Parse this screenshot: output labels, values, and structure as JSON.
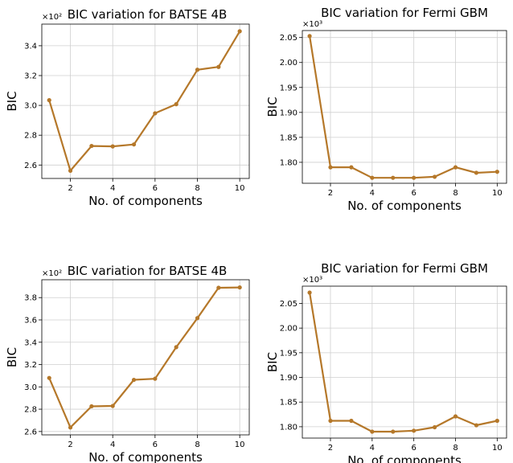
{
  "colors": {
    "series": "#b5782a",
    "grid": "#cfcfcf"
  },
  "chart_data": [
    {
      "type": "line",
      "title": "BIC variation for BATSE 4B",
      "xlabel": "No. of components",
      "ylabel": "BIC",
      "multiplier": "×10²",
      "x": [
        1,
        2,
        3,
        4,
        5,
        6,
        7,
        8,
        9,
        10
      ],
      "y": [
        3.035,
        2.562,
        2.728,
        2.725,
        2.738,
        2.947,
        3.008,
        3.239,
        3.258,
        3.497
      ],
      "xlim": [
        0.65,
        10.45
      ],
      "ylim": [
        2.51,
        3.545
      ],
      "xticks": [
        "2",
        "4",
        "6",
        "8",
        "10"
      ],
      "yticks": [
        "2.6",
        "2.8",
        "3.0",
        "3.2",
        "3.4"
      ],
      "grid": true
    },
    {
      "type": "line",
      "title": "BIC variation for Fermi GBM",
      "xlabel": "No. of components",
      "ylabel": "BIC",
      "multiplier": "×10³",
      "x": [
        1,
        2,
        3,
        4,
        5,
        6,
        7,
        8,
        9,
        10
      ],
      "y": [
        2.053,
        1.79,
        1.79,
        1.769,
        1.769,
        1.769,
        1.771,
        1.79,
        1.779,
        1.781
      ],
      "xlim": [
        0.65,
        10.45
      ],
      "ylim": [
        1.758,
        2.064
      ],
      "xticks": [
        "2",
        "4",
        "6",
        "8",
        "10"
      ],
      "yticks": [
        "1.75",
        "1.80",
        "1.85",
        "1.90",
        "1.95",
        "2.00",
        "2.05"
      ],
      "grid": true
    },
    {
      "type": "line",
      "title": "BIC variation for BATSE 4B",
      "xlabel": "No. of components",
      "ylabel": "BIC",
      "multiplier": "×10²",
      "x": [
        1,
        2,
        3,
        4,
        5,
        6,
        7,
        8,
        9,
        10
      ],
      "y": [
        3.08,
        2.636,
        2.826,
        2.829,
        3.063,
        3.073,
        3.356,
        3.616,
        3.888,
        3.891
      ],
      "xlim": [
        0.65,
        10.45
      ],
      "ylim": [
        2.57,
        3.96
      ],
      "xticks": [
        "2",
        "4",
        "6",
        "8",
        "10"
      ],
      "yticks": [
        "2.6",
        "2.8",
        "3.0",
        "3.2",
        "3.4",
        "3.6",
        "3.8"
      ],
      "grid": true
    },
    {
      "type": "line",
      "title": "BIC variation for Fermi GBM",
      "xlabel": "No. of components",
      "ylabel": "BIC",
      "multiplier": "×10³",
      "x": [
        1,
        2,
        3,
        4,
        5,
        6,
        7,
        8,
        9,
        10
      ],
      "y": [
        2.072,
        1.812,
        1.812,
        1.79,
        1.79,
        1.792,
        1.799,
        1.821,
        1.803,
        1.812
      ],
      "xlim": [
        0.65,
        10.45
      ],
      "ylim": [
        1.777,
        2.085
      ],
      "xticks": [
        "2",
        "4",
        "6",
        "8",
        "10"
      ],
      "yticks": [
        "1.80",
        "1.85",
        "1.90",
        "1.95",
        "2.00",
        "2.05"
      ],
      "grid": true
    }
  ]
}
